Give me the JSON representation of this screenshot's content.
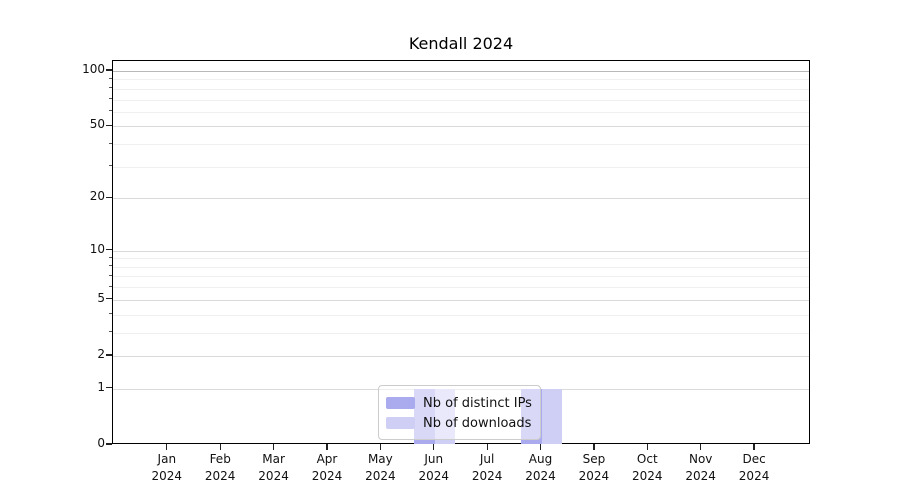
{
  "chart_data": {
    "type": "bar",
    "title": "Kendall 2024",
    "categories": [
      "Jan 2024",
      "Feb 2024",
      "Mar 2024",
      "Apr 2024",
      "May 2024",
      "Jun 2024",
      "Jul 2024",
      "Aug 2024",
      "Sep 2024",
      "Oct 2024",
      "Nov 2024",
      "Dec 2024"
    ],
    "series": [
      {
        "name": "Nb of distinct IPs",
        "color": "#aaaaee",
        "values": [
          0,
          0,
          0,
          0,
          0,
          1,
          0,
          1,
          0,
          0,
          0,
          0
        ]
      },
      {
        "name": "Nb of downloads",
        "color": "#cfcff5",
        "values": [
          0,
          0,
          0,
          0,
          0,
          1,
          0,
          1,
          0,
          0,
          0,
          0
        ]
      }
    ],
    "xlabel": "",
    "ylabel": "",
    "yscale": "log10(1+x)",
    "ylim": [
      0,
      113.3
    ],
    "yticks_major": [
      0,
      1,
      2,
      5,
      10,
      20,
      50,
      100
    ],
    "yticks_minor": [
      3,
      4,
      6,
      7,
      8,
      9,
      30,
      40,
      60,
      70,
      80,
      90
    ],
    "grid": "both",
    "legend_position": "lower center inside axes"
  }
}
